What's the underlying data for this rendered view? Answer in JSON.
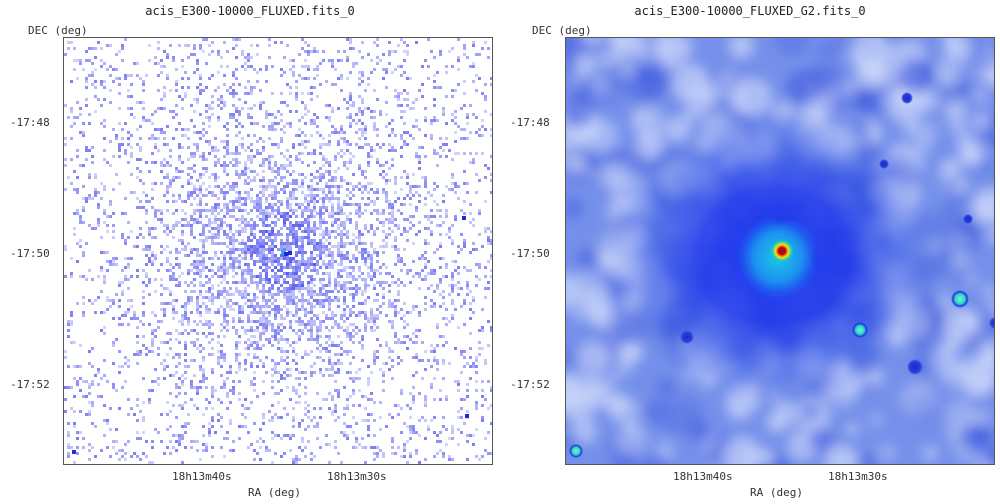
{
  "panels": [
    {
      "title": "acis_E300-10000_FLUXED.fits_0",
      "y_axis": "DEC (deg)",
      "x_axis": "RA (deg)",
      "y_ticks": [
        "-17:48",
        "-17:50",
        "-17:52"
      ],
      "x_ticks": [
        "18h13m40s",
        "18h13m30s"
      ]
    },
    {
      "title": "acis_E300-10000_FLUXED_G2.fits_0",
      "y_axis": "DEC (deg)",
      "x_axis": "RA (deg)",
      "y_ticks": [
        "-17:48",
        "-17:50",
        "-17:52"
      ],
      "x_ticks": [
        "18h13m40s",
        "18h13m30s"
      ]
    }
  ],
  "colors": {
    "raw_pixel": "#5a5ef0",
    "smooth_bg": "#6b86e8",
    "smooth_light": "#cdd8fb",
    "diffuse": "#1d2be6",
    "core_hot": "#d81818",
    "core_warm": "#f2e21a",
    "core_cyan": "#18c9c0",
    "point_source": "#2bd6c0"
  }
}
